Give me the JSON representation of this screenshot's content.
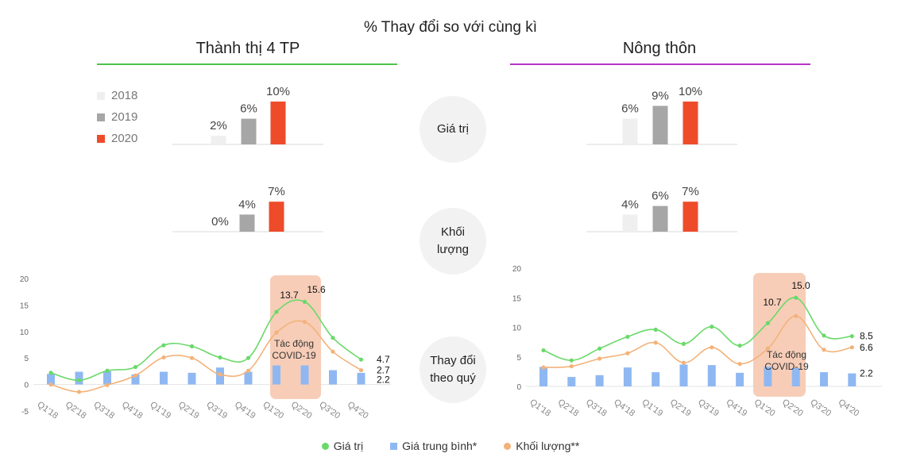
{
  "title": "% Thay đổi so với cùng kì",
  "sections": {
    "urban": {
      "title": "Thành thị 4 TP",
      "rule_color": "#4cc34a"
    },
    "rural": {
      "title": "Nông thôn",
      "rule_color": "#b535c4"
    }
  },
  "colors": {
    "y2018": "#efefef",
    "y2019": "#a6a6a6",
    "y2020": "#ee4b2b",
    "gia_tri": "#6ad96a",
    "gia_trung_binh": "#8fb8f2",
    "khoi_luong": "#f3b27a",
    "covid_band": "#f7cdb8"
  },
  "year_legend": [
    "2018",
    "2019",
    "2020"
  ],
  "metrics": {
    "value": "Giá trị",
    "volume_line1": "Khối",
    "volume_line2": "lượng",
    "quarterly_line1": "Thay đổi",
    "quarterly_line2": "theo quý"
  },
  "chart_data": [
    {
      "type": "bar",
      "section": "Thành thị 4 TP",
      "metric": "Giá trị",
      "categories": [
        "2018",
        "2019",
        "2020"
      ],
      "values": [
        2,
        6,
        10
      ],
      "labels": [
        "2%",
        "6%",
        "10%"
      ]
    },
    {
      "type": "bar",
      "section": "Thành thị 4 TP",
      "metric": "Khối lượng",
      "categories": [
        "2018",
        "2019",
        "2020"
      ],
      "values": [
        0,
        4,
        7
      ],
      "labels": [
        "0%",
        "4%",
        "7%"
      ]
    },
    {
      "type": "bar",
      "section": "Nông thôn",
      "metric": "Giá trị",
      "categories": [
        "2018",
        "2019",
        "2020"
      ],
      "values": [
        6,
        9,
        10
      ],
      "labels": [
        "6%",
        "9%",
        "10%"
      ]
    },
    {
      "type": "bar",
      "section": "Nông thôn",
      "metric": "Khối lượng",
      "categories": [
        "2018",
        "2019",
        "2020"
      ],
      "values": [
        4,
        6,
        7
      ],
      "labels": [
        "4%",
        "6%",
        "7%"
      ]
    },
    {
      "type": "line",
      "section": "Thành thị 4 TP",
      "categories": [
        "Q1'18",
        "Q2'18",
        "Q3'18",
        "Q4'18",
        "Q1'19",
        "Q2'19",
        "Q3'19",
        "Q4'19",
        "Q1'20",
        "Q2'20",
        "Q3'20",
        "Q4'20"
      ],
      "ylim": [
        -5,
        20
      ],
      "yticks": [
        -5,
        0,
        5,
        10,
        15,
        20
      ],
      "series": [
        {
          "name": "Giá trị",
          "kind": "line",
          "values": [
            2.2,
            0.8,
            2.6,
            3.3,
            7.4,
            7.2,
            5.1,
            5.0,
            13.7,
            15.6,
            8.8,
            4.7
          ]
        },
        {
          "name": "Giá trung bình*",
          "kind": "bar",
          "values": [
            2.0,
            2.4,
            2.5,
            1.9,
            2.4,
            2.2,
            3.2,
            2.4,
            3.6,
            3.6,
            2.7,
            2.2
          ]
        },
        {
          "name": "Khối lượng**",
          "kind": "line",
          "values": [
            0.0,
            -1.4,
            -0.1,
            1.7,
            5.1,
            5.0,
            1.9,
            2.6,
            9.8,
            11.8,
            6.2,
            2.7
          ]
        }
      ],
      "highlight": {
        "from": "Q1'20",
        "to": "Q2'20",
        "label_line1": "Tác động",
        "label_line2": "COVID-19"
      },
      "point_labels": {
        "peak_a": "13.7",
        "peak_b": "15.6",
        "end_gia_tri": "4.7",
        "end_khoi_luong": "2.7",
        "end_gia_trung_binh": "2.2"
      }
    },
    {
      "type": "line",
      "section": "Nông thôn",
      "categories": [
        "Q1'18",
        "Q2'18",
        "Q3'18",
        "Q4'18",
        "Q1'19",
        "Q2'19",
        "Q3'19",
        "Q4'19",
        "Q1'20",
        "Q2'20",
        "Q3'20",
        "Q4'20"
      ],
      "ylim": [
        0,
        20
      ],
      "yticks": [
        0,
        5,
        10,
        15,
        20
      ],
      "series": [
        {
          "name": "Giá trị",
          "kind": "line",
          "values": [
            6.1,
            4.4,
            6.4,
            8.4,
            9.6,
            7.2,
            10.1,
            6.9,
            10.7,
            15.0,
            8.6,
            8.5
          ]
        },
        {
          "name": "Giá trung bình*",
          "kind": "bar",
          "values": [
            3.3,
            1.6,
            1.9,
            3.2,
            2.4,
            3.7,
            3.6,
            2.3,
            3.3,
            3.1,
            2.4,
            2.2
          ]
        },
        {
          "name": "Khối lượng**",
          "kind": "line",
          "values": [
            3.2,
            3.4,
            4.7,
            5.6,
            7.4,
            4.0,
            6.6,
            3.8,
            6.4,
            11.9,
            6.2,
            6.6
          ]
        }
      ],
      "highlight": {
        "from": "Q1'20",
        "to": "Q2'20",
        "label_line1": "Tác động",
        "label_line2": "COVID-19"
      },
      "point_labels": {
        "peak_a": "10.7",
        "peak_b": "15.0",
        "end_gia_tri": "8.5",
        "end_khoi_luong": "6.6",
        "end_gia_trung_binh": "2.2"
      }
    }
  ],
  "legend": {
    "gia_tri": "Giá trị",
    "gia_trung_binh": "Giá trung bình*",
    "khoi_luong": "Khối lượng**"
  }
}
